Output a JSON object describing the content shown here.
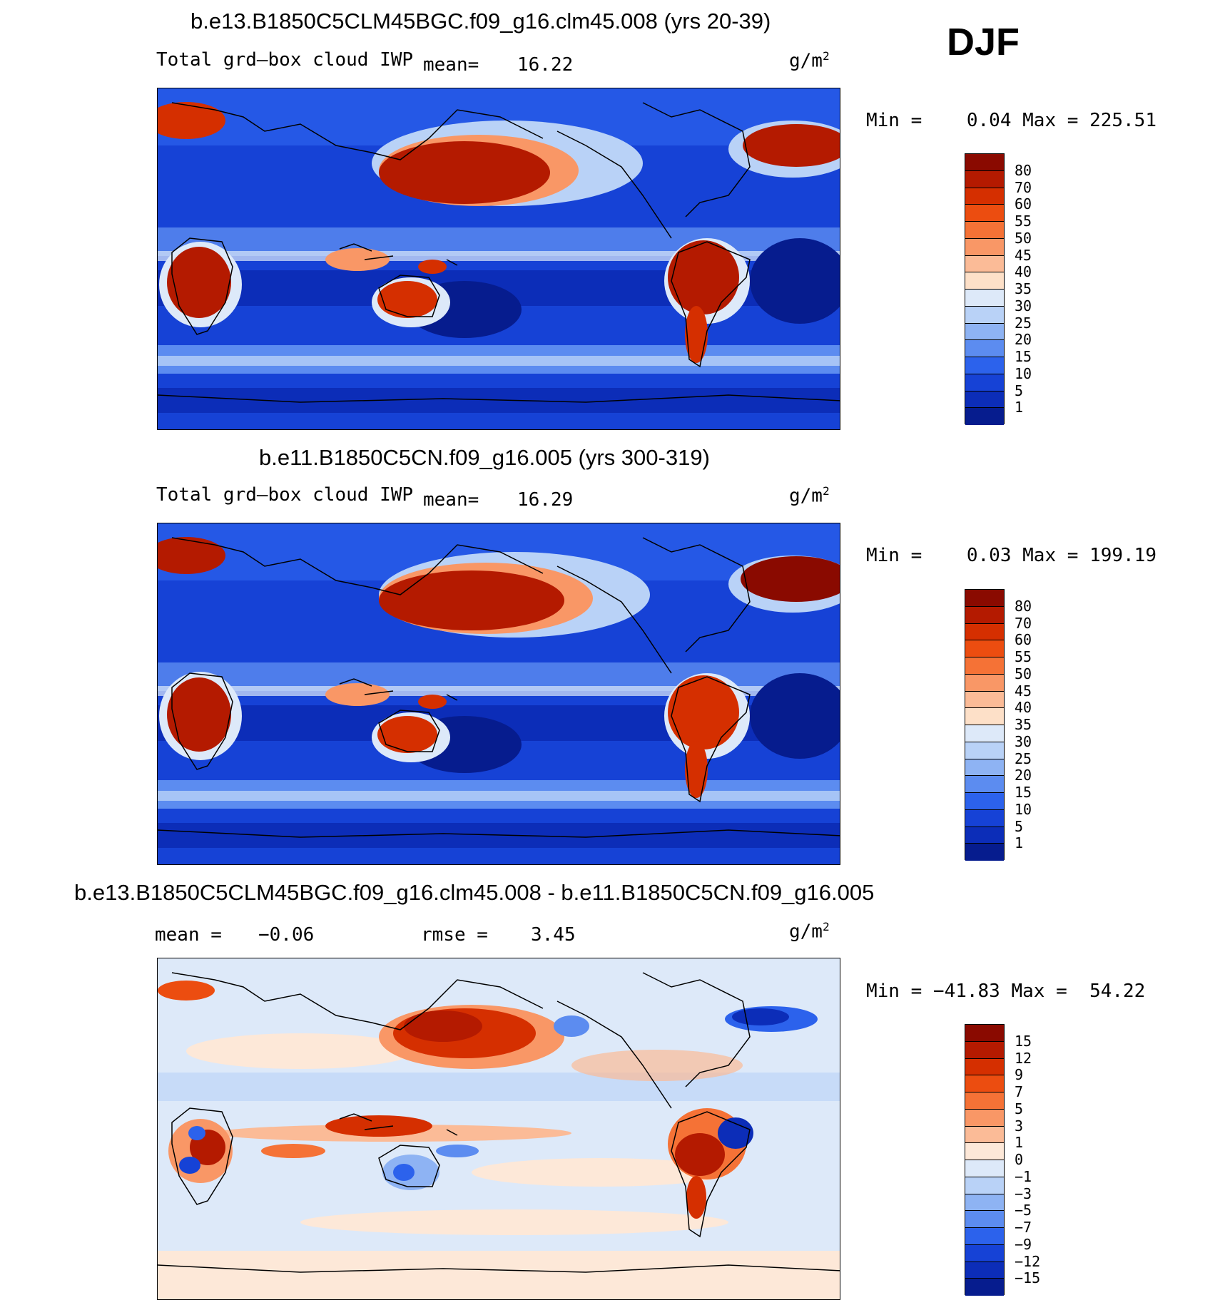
{
  "season": "DJF",
  "panels": [
    {
      "title": "b.e13.B1850C5CLM45BGC.f09_g16.clm45.008 (yrs 20-39)",
      "variable": "Total grd–box cloud IWP",
      "mean_label": "mean=",
      "mean_value": "16.22",
      "units": "g/m",
      "units_power": "2",
      "minmax": "Min =    0.04 Max = 225.51",
      "colorbar_labels": [
        "80",
        "70",
        "60",
        "55",
        "50",
        "45",
        "40",
        "35",
        "30",
        "25",
        "20",
        "15",
        "10",
        "5",
        "1"
      ],
      "colors": [
        "#8a0a00",
        "#b41a00",
        "#d52f00",
        "#ec4d10",
        "#f57236",
        "#f99766",
        "#fbbb97",
        "#fde0c8",
        "#dde9f9",
        "#b9d2f7",
        "#8eb3f3",
        "#5c8cf0",
        "#2c62ec",
        "#1642d6",
        "#0c2db8",
        "#061c8e"
      ]
    },
    {
      "title": "b.e11.B1850C5CN.f09_g16.005 (yrs 300-319)",
      "variable": "Total grd–box cloud IWP",
      "mean_label": "mean=",
      "mean_value": "16.29",
      "units": "g/m",
      "units_power": "2",
      "minmax": "Min =    0.03 Max = 199.19",
      "colorbar_labels": [
        "80",
        "70",
        "60",
        "55",
        "50",
        "45",
        "40",
        "35",
        "30",
        "25",
        "20",
        "15",
        "10",
        "5",
        "1"
      ],
      "colors": [
        "#8a0a00",
        "#b41a00",
        "#d52f00",
        "#ec4d10",
        "#f57236",
        "#f99766",
        "#fbbb97",
        "#fde0c8",
        "#dde9f9",
        "#b9d2f7",
        "#8eb3f3",
        "#5c8cf0",
        "#2c62ec",
        "#1642d6",
        "#0c2db8",
        "#061c8e"
      ]
    },
    {
      "title": "b.e13.B1850C5CLM45BGC.f09_g16.clm45.008 - b.e11.B1850C5CN.f09_g16.005",
      "mean_label": "mean =",
      "mean_value": "−0.06",
      "rmse_label": "rmse =",
      "rmse_value": "3.45",
      "units": "g/m",
      "units_power": "2",
      "minmax": "Min = −41.83 Max =  54.22",
      "colorbar_labels": [
        "15",
        "12",
        "9",
        "7",
        "5",
        "3",
        "1",
        "0",
        "−1",
        "−3",
        "−5",
        "−7",
        "−9",
        "−12",
        "−15"
      ],
      "colors": [
        "#8a0a00",
        "#b41a00",
        "#d52f00",
        "#ec4d10",
        "#f57236",
        "#f99766",
        "#fbbb97",
        "#fde8d8",
        "#dde9f9",
        "#b9d2f7",
        "#8eb3f3",
        "#5c8cf0",
        "#2c62ec",
        "#1642d6",
        "#0c2db8",
        "#061c8e"
      ]
    }
  ]
}
